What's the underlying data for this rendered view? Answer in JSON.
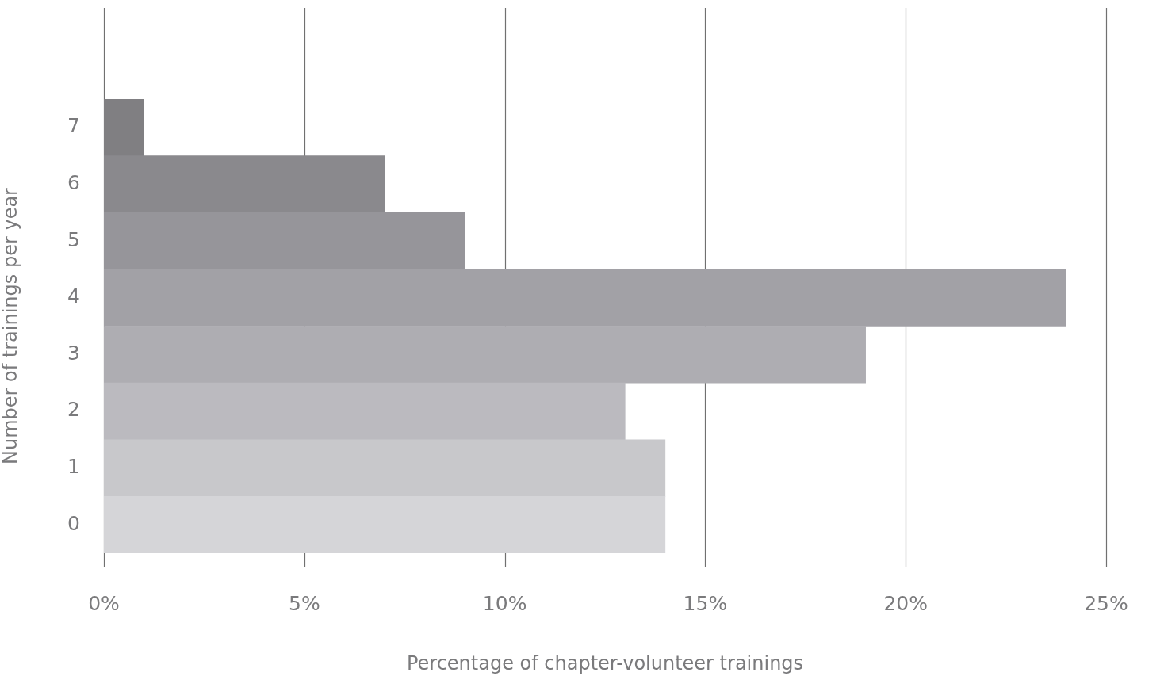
{
  "chart_data": {
    "type": "bar",
    "orientation": "horizontal",
    "xlabel": "Percentage of chapter-volunteer trainings",
    "ylabel": "Number of trainings per year",
    "categories": [
      "7",
      "6",
      "5",
      "4",
      "3",
      "2",
      "1",
      "0"
    ],
    "values": [
      1,
      7,
      9,
      24,
      19,
      13,
      14,
      14
    ],
    "colors": [
      "#807f82",
      "#8a898d",
      "#96959a",
      "#a2a1a6",
      "#aeadb2",
      "#bbbabf",
      "#c8c8cb",
      "#d5d5d8"
    ],
    "xlim": [
      0,
      25
    ],
    "xticks": [
      {
        "value": 0,
        "label": "0%"
      },
      {
        "value": 5,
        "label": "5%"
      },
      {
        "value": 10,
        "label": "10%"
      },
      {
        "value": 15,
        "label": "15%"
      },
      {
        "value": 20,
        "label": "20%"
      },
      {
        "value": 25,
        "label": "25%"
      }
    ],
    "grid": "x",
    "legend": false
  }
}
